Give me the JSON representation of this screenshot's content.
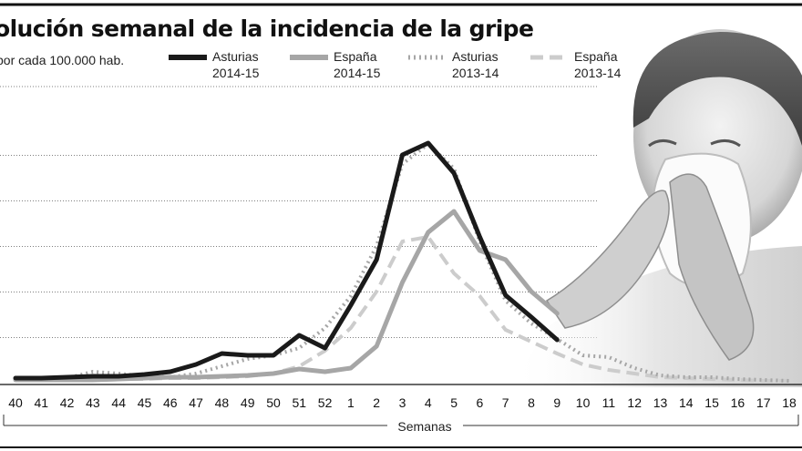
{
  "header": {
    "title": "olución semanal de la incidencia de la gripe",
    "subtitle": "por cada 100.000 hab."
  },
  "chart_data": {
    "type": "line",
    "title": "olución semanal de la incidencia de la gripe",
    "subtitle": "por cada 100.000 hab.",
    "xlabel": "Semanas",
    "ylabel": "",
    "grid": true,
    "legend_position": "top",
    "ylim": [
      0,
      270
    ],
    "x": [
      "40",
      "41",
      "42",
      "43",
      "44",
      "45",
      "46",
      "47",
      "48",
      "49",
      "50",
      "51",
      "52",
      "1",
      "2",
      "3",
      "4",
      "5",
      "6",
      "7",
      "8",
      "9",
      "10",
      "11",
      "12",
      "13",
      "14",
      "15",
      "16",
      "17",
      "18"
    ],
    "series": [
      {
        "name": "Asturias 2014-15",
        "style": "solid-thick",
        "color": "#1a1a1a",
        "values": [
          5,
          5,
          6,
          7,
          7,
          9,
          12,
          20,
          32,
          30,
          30,
          52,
          38,
          85,
          135,
          250,
          263,
          230,
          160,
          96,
          72,
          47,
          null,
          null,
          null,
          null,
          null,
          null,
          null,
          null,
          null
        ]
      },
      {
        "name": "España 2014-15",
        "style": "solid-thick",
        "color": "#a6a6a6",
        "values": [
          3,
          3,
          3,
          3,
          4,
          5,
          6,
          6,
          7,
          8,
          10,
          15,
          12,
          16,
          40,
          110,
          165,
          188,
          145,
          135,
          100,
          76,
          null,
          null,
          null,
          null,
          null,
          null,
          null,
          null,
          null
        ]
      },
      {
        "name": "Asturias 2013-14",
        "style": "dotted",
        "color": "#a6a6a6",
        "values": [
          4,
          4,
          5,
          12,
          10,
          7,
          6,
          10,
          18,
          26,
          30,
          38,
          60,
          95,
          150,
          240,
          262,
          235,
          155,
          90,
          65,
          48,
          30,
          28,
          16,
          8,
          6,
          6,
          4,
          3,
          2
        ]
      },
      {
        "name": "España 2013-14",
        "style": "dashed",
        "color": "#cccccc",
        "values": [
          3,
          3,
          3,
          4,
          4,
          4,
          5,
          5,
          6,
          7,
          10,
          18,
          35,
          60,
          100,
          155,
          160,
          120,
          95,
          58,
          45,
          32,
          20,
          14,
          10,
          6,
          5,
          4,
          3,
          2,
          2
        ]
      }
    ]
  }
}
